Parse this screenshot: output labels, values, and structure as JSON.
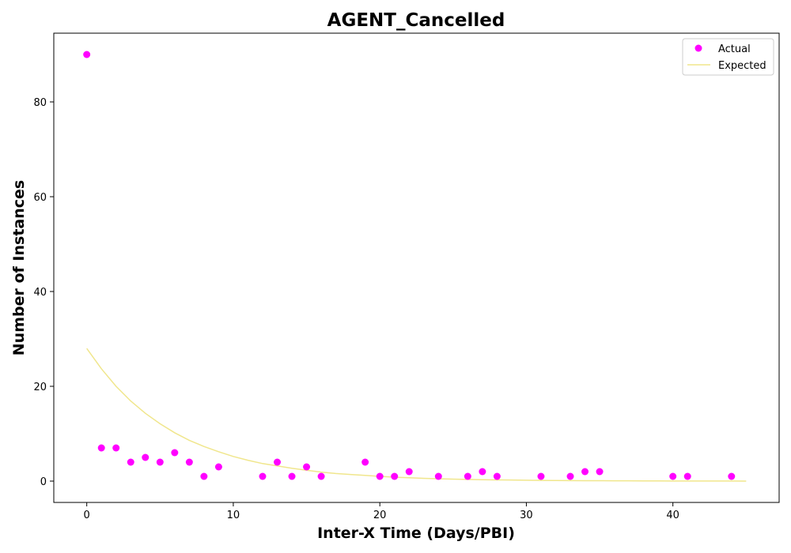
{
  "chart_data": {
    "type": "scatter",
    "title": "AGENT_Cancelled",
    "xlabel": "Inter-X Time (Days/PBI)",
    "ylabel": "Number of Instances",
    "xlim": [
      -2.25,
      47.25
    ],
    "ylim": [
      -4.5,
      94.5
    ],
    "x_ticks": [
      0,
      10,
      20,
      30,
      40
    ],
    "y_ticks": [
      0,
      20,
      40,
      60,
      80
    ],
    "grid": false,
    "legend_position": "top-right",
    "series": [
      {
        "name": "Actual",
        "kind": "scatter",
        "color": "#ff00ff",
        "x": [
          0,
          1,
          2,
          3,
          4,
          5,
          6,
          7,
          8,
          9,
          12,
          13,
          14,
          15,
          16,
          19,
          20,
          21,
          22,
          24,
          26,
          27,
          28,
          31,
          33,
          34,
          35,
          40,
          41,
          44
        ],
        "y": [
          90,
          7,
          7,
          4,
          5,
          4,
          6,
          4,
          1,
          3,
          1,
          4,
          1,
          3,
          1,
          4,
          1,
          1,
          2,
          1,
          1,
          2,
          1,
          1,
          1,
          2,
          2,
          1,
          1,
          1
        ]
      },
      {
        "name": "Expected",
        "kind": "line",
        "color": "#f0e68c",
        "x": [
          0,
          1,
          2,
          3,
          4,
          5,
          6,
          7,
          8,
          9,
          10,
          11,
          12,
          13,
          14,
          15,
          16,
          17,
          18,
          19,
          20,
          21,
          22,
          23,
          24,
          25,
          26,
          27,
          28,
          29,
          30,
          31,
          32,
          33,
          34,
          35,
          36,
          37,
          38,
          39,
          40,
          41,
          42,
          43,
          44,
          45
        ],
        "y": [
          28,
          23.7,
          20.0,
          16.9,
          14.3,
          12.1,
          10.2,
          8.6,
          7.3,
          6.2,
          5.2,
          4.4,
          3.7,
          3.2,
          2.7,
          2.3,
          1.9,
          1.6,
          1.4,
          1.2,
          1.0,
          0.83,
          0.7,
          0.59,
          0.5,
          0.42,
          0.36,
          0.3,
          0.26,
          0.22,
          0.18,
          0.15,
          0.13,
          0.11,
          0.09,
          0.08,
          0.07,
          0.06,
          0.05,
          0.04,
          0.03,
          0.03,
          0.02,
          0.02,
          0.02,
          0.01
        ]
      }
    ]
  }
}
